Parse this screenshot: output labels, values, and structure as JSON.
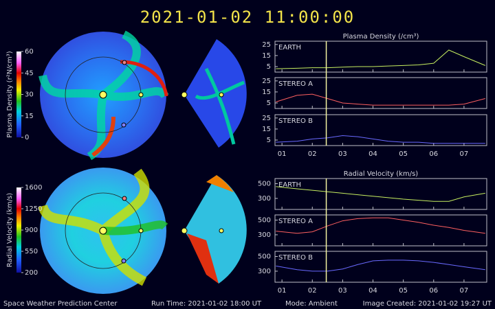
{
  "title": "2021-01-02  11:00:00",
  "footer": {
    "center": "Space Weather Prediction Center",
    "run_time": "Run Time: 2021-01-02 18:00 UT",
    "mode": "Mode: Ambient",
    "created": "Image Created: 2021-01-02 19:27 UT"
  },
  "colorbars": [
    {
      "label": "Plasma Density (r²N/cm³)",
      "ylim": [
        0,
        60
      ],
      "yticks": [
        0,
        15,
        30,
        45,
        60
      ]
    },
    {
      "label": "Radial Velocity (km/s)",
      "ylim": [
        200,
        1600
      ],
      "yticks": [
        200,
        550,
        900,
        1250,
        1600
      ]
    }
  ],
  "chart_data": [
    {
      "type": "line",
      "title": "Plasma Density (/cm³)",
      "layout": "stacked-panels",
      "x": [
        0.8,
        1.5,
        2.0,
        2.5,
        3.0,
        3.5,
        4.0,
        4.5,
        5.0,
        5.5,
        6.0,
        6.5,
        7.0,
        7.7
      ],
      "xlim": [
        0.77,
        7.75
      ],
      "xticks": [
        {
          "value": 1,
          "label": "01"
        },
        {
          "value": 2,
          "label": "02"
        },
        {
          "value": 3,
          "label": "03"
        },
        {
          "value": 4,
          "label": "04"
        },
        {
          "value": 5,
          "label": "05"
        },
        {
          "value": 6,
          "label": "06"
        },
        {
          "value": 7,
          "label": "07"
        }
      ],
      "ylim": [
        0,
        28
      ],
      "yticks": [
        5,
        15,
        25
      ],
      "marker_x": 2.46,
      "marker_color": "#f4f4a0",
      "series": [
        {
          "name": "EARTH",
          "color": "#c8f060",
          "values": [
            3,
            3.5,
            4,
            4,
            4.5,
            5,
            5,
            5.5,
            6,
            6.5,
            8,
            20,
            14,
            6
          ]
        },
        {
          "name": "STEREO A",
          "color": "#ff6060",
          "values": [
            6,
            12,
            13,
            9,
            5,
            4,
            3,
            3,
            3,
            3,
            3,
            3,
            4,
            9
          ]
        },
        {
          "name": "STEREO B",
          "color": "#6a6aff",
          "values": [
            3,
            4,
            6,
            7,
            9,
            8,
            6,
            4,
            3,
            3,
            2,
            2,
            2,
            2
          ]
        }
      ]
    },
    {
      "type": "line",
      "title": "Radial Velocity (km/s)",
      "layout": "stacked-panels",
      "x": [
        0.8,
        1.5,
        2.0,
        2.5,
        3.0,
        3.5,
        4.0,
        4.5,
        5.0,
        5.5,
        6.0,
        6.5,
        7.0,
        7.7
      ],
      "xlim": [
        0.77,
        7.75
      ],
      "xticks": [
        {
          "value": 1,
          "label": "01"
        },
        {
          "value": 2,
          "label": "02"
        },
        {
          "value": 3,
          "label": "03"
        },
        {
          "value": 4,
          "label": "04"
        },
        {
          "value": 5,
          "label": "05"
        },
        {
          "value": 6,
          "label": "06"
        },
        {
          "value": 7,
          "label": "07"
        }
      ],
      "ylim": [
        150,
        570
      ],
      "yticks": [
        300,
        500
      ],
      "marker_x": 2.46,
      "marker_color": "#f4f4a0",
      "series": [
        {
          "name": "EARTH",
          "color": "#c8f060",
          "values": [
            460,
            430,
            410,
            390,
            370,
            350,
            330,
            310,
            290,
            275,
            260,
            260,
            320,
            370
          ]
        },
        {
          "name": "STEREO A",
          "color": "#ff6060",
          "values": [
            350,
            320,
            340,
            420,
            490,
            520,
            530,
            530,
            500,
            470,
            430,
            400,
            360,
            320
          ]
        },
        {
          "name": "STEREO B",
          "color": "#6a6aff",
          "values": [
            370,
            320,
            300,
            300,
            330,
            390,
            440,
            450,
            450,
            440,
            420,
            390,
            360,
            320
          ]
        }
      ]
    }
  ]
}
